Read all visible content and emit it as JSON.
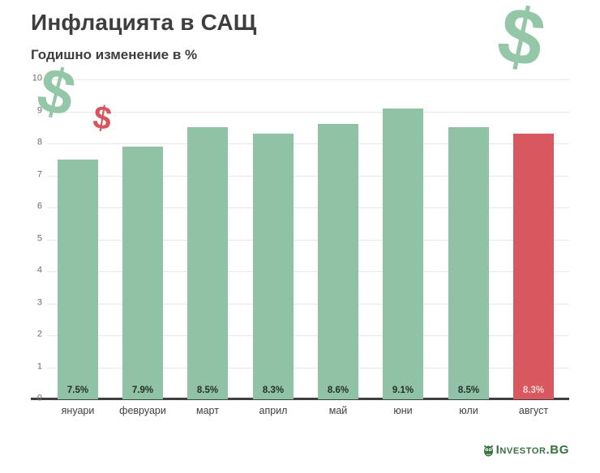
{
  "header": {
    "title": "Инфлацията в САЩ",
    "subtitle": "Годишно изменение в %"
  },
  "chart_data": {
    "type": "bar",
    "title": "Инфлацията в САЩ",
    "subtitle": "Годишно изменение в %",
    "categories": [
      "януари",
      "февруари",
      "март",
      "април",
      "май",
      "юни",
      "юли",
      "август"
    ],
    "values": [
      7.5,
      7.9,
      8.5,
      8.3,
      8.6,
      9.1,
      8.5,
      8.3
    ],
    "value_labels": [
      "7.5%",
      "7.9%",
      "8.5%",
      "8.3%",
      "8.6%",
      "9.1%",
      "8.5%",
      "8.3%"
    ],
    "highlight_index": 7,
    "xlabel": "",
    "ylabel": "Годишно изменение в %",
    "ylim": [
      0,
      10
    ],
    "yticks": [
      0,
      1,
      2,
      3,
      4,
      5,
      6,
      7,
      8,
      9,
      10
    ],
    "grid": true,
    "legend": "none",
    "bar_color": "#90c3a6",
    "highlight_color": "#d9575f"
  },
  "decorations": {
    "dollar_glyph": "$",
    "dollar_color_green": "#94c6a8",
    "dollar_color_red": "#d9555d"
  },
  "footer": {
    "logo_text": "Investor.BG",
    "logo_color": "#37713f"
  }
}
